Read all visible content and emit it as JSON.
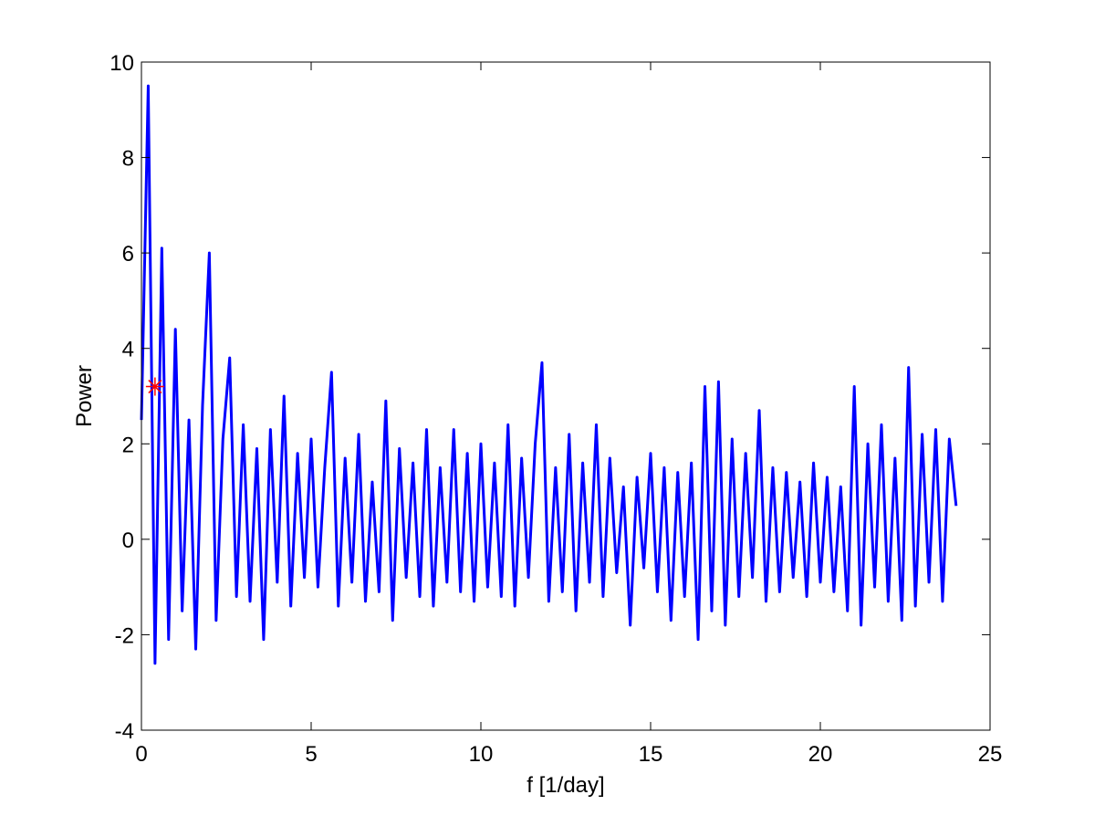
{
  "chart_data": {
    "type": "line",
    "xlabel": "f [1/day]",
    "ylabel": "Power",
    "xlim": [
      0,
      25
    ],
    "xticks": [
      0,
      5,
      10,
      15,
      20,
      25
    ],
    "ylim": [
      -4,
      10
    ],
    "yticks": [
      -4,
      -2,
      0,
      2,
      4,
      6,
      8,
      10
    ],
    "series": [
      {
        "color": "#0000ff",
        "x": [
          0.0,
          0.2,
          0.4,
          0.6,
          0.8,
          1.0,
          1.2,
          1.4,
          1.6,
          1.8,
          2.0,
          2.2,
          2.4,
          2.6,
          2.8,
          3.0,
          3.2,
          3.4,
          3.6,
          3.8,
          4.0,
          4.2,
          4.4,
          4.6,
          4.8,
          5.0,
          5.2,
          5.4,
          5.6,
          5.8,
          6.0,
          6.2,
          6.4,
          6.6,
          6.8,
          7.0,
          7.2,
          7.4,
          7.6,
          7.8,
          8.0,
          8.2,
          8.4,
          8.6,
          8.8,
          9.0,
          9.2,
          9.4,
          9.6,
          9.8,
          10.0,
          10.2,
          10.4,
          10.6,
          10.8,
          11.0,
          11.2,
          11.4,
          11.6,
          11.8,
          12.0,
          12.2,
          12.4,
          12.6,
          12.8,
          13.0,
          13.2,
          13.4,
          13.6,
          13.8,
          14.0,
          14.2,
          14.4,
          14.6,
          14.8,
          15.0,
          15.2,
          15.4,
          15.6,
          15.8,
          16.0,
          16.2,
          16.4,
          16.6,
          16.8,
          17.0,
          17.2,
          17.4,
          17.6,
          17.8,
          18.0,
          18.2,
          18.4,
          18.6,
          18.8,
          19.0,
          19.2,
          19.4,
          19.6,
          19.8,
          20.0,
          20.2,
          20.4,
          20.6,
          20.8,
          21.0,
          21.2,
          21.4,
          21.6,
          21.8,
          22.0,
          22.2,
          22.4,
          22.6,
          22.8,
          23.0,
          23.2,
          23.4,
          23.6,
          23.8,
          24.0
        ],
        "values": [
          2.5,
          9.5,
          -2.6,
          6.1,
          -2.1,
          4.4,
          -1.5,
          2.5,
          -2.3,
          2.8,
          6.0,
          -1.7,
          2.1,
          3.8,
          -1.2,
          2.4,
          -1.3,
          1.9,
          -2.1,
          2.3,
          -0.9,
          3.0,
          -1.4,
          1.8,
          -0.8,
          2.1,
          -1.0,
          1.5,
          3.5,
          -1.4,
          1.7,
          -0.9,
          2.2,
          -1.3,
          1.2,
          -1.1,
          2.9,
          -1.7,
          1.9,
          -0.8,
          1.6,
          -1.2,
          2.3,
          -1.4,
          1.5,
          -0.9,
          2.3,
          -1.1,
          1.8,
          -1.3,
          2.0,
          -1.0,
          1.6,
          -1.2,
          2.4,
          -1.4,
          1.7,
          -0.8,
          2.0,
          3.7,
          -1.3,
          1.5,
          -1.1,
          2.2,
          -1.5,
          1.6,
          -0.9,
          2.4,
          -1.2,
          1.7,
          -0.7,
          1.1,
          -1.8,
          1.3,
          -0.6,
          1.8,
          -1.1,
          1.5,
          -1.7,
          1.4,
          -1.2,
          1.6,
          -2.1,
          3.2,
          -1.5,
          3.3,
          -1.8,
          2.1,
          -1.2,
          1.8,
          -0.8,
          2.7,
          -1.3,
          1.5,
          -1.1,
          1.4,
          -0.8,
          1.2,
          -1.2,
          1.6,
          -0.9,
          1.3,
          -1.1,
          1.1,
          -1.5,
          3.2,
          -1.8,
          2.0,
          -1.0,
          2.4,
          -1.3,
          1.7,
          -1.7,
          3.6,
          -1.4,
          2.2,
          -0.9,
          2.3,
          -1.3,
          2.1,
          0.7
        ]
      },
      {
        "color": "#ff0000",
        "marker": "*",
        "x": [
          0.4
        ],
        "values": [
          3.2
        ]
      }
    ]
  }
}
